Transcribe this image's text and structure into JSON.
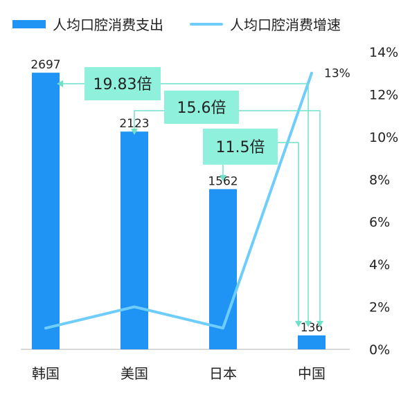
{
  "chart_data": {
    "type": "bar",
    "categories": [
      "韩国",
      "美国",
      "日本",
      "中国"
    ],
    "series": [
      {
        "name": "人均口腔消费支出",
        "type": "bar",
        "axis": "left",
        "values": [
          2697,
          2123,
          1562,
          136
        ]
      },
      {
        "name": "人均口腔消费增速",
        "type": "line",
        "axis": "right",
        "values": [
          1,
          2,
          1,
          13
        ],
        "unit": "%"
      }
    ],
    "bar_labels": [
      "2697",
      "2123",
      "1562",
      "136"
    ],
    "line_label": "13%",
    "y_left_range": [
      0,
      2900
    ],
    "y_right": {
      "range": [
        0,
        14
      ],
      "ticks": [
        "0%",
        "2%",
        "4%",
        "6%",
        "8%",
        "10%",
        "12%",
        "14%"
      ]
    },
    "annotations": [
      {
        "text": "19.83倍",
        "from": "中国",
        "to": "韩国"
      },
      {
        "text": "15.6倍",
        "from": "中国",
        "to": "美国"
      },
      {
        "text": "11.5倍",
        "from": "中国",
        "to": "日本"
      }
    ],
    "legend_position": "top-left",
    "grid": false
  },
  "colors": {
    "bar": "#1f94f5",
    "line": "#6ecdfa",
    "annotation_box": "#8ff0dc",
    "annotation_line": "#6fe0c8",
    "axis": "#cccccc",
    "text": "#222222"
  }
}
